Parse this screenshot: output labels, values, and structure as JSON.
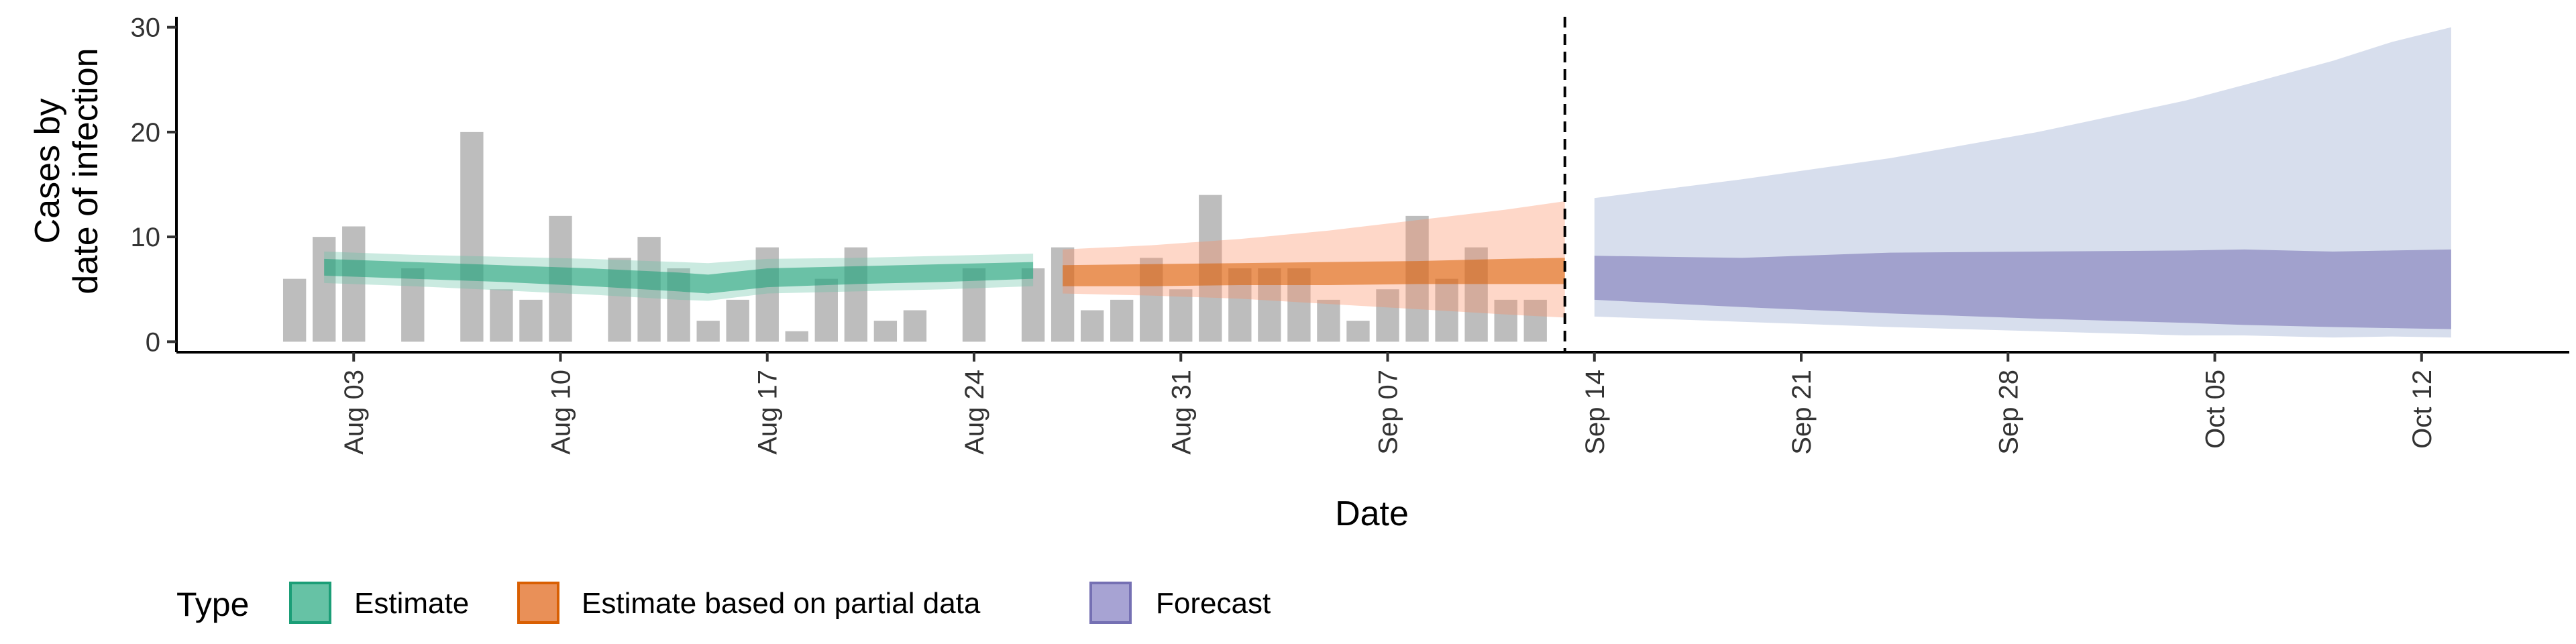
{
  "chart_data": {
    "type": "area",
    "xlabel": "Date",
    "ylabel": [
      "Cases by",
      "date of infection"
    ],
    "xlim": [
      "2020-07-28",
      "2020-10-17"
    ],
    "ylim": [
      -1,
      31
    ],
    "y_ticks": [
      0,
      10,
      20,
      30
    ],
    "x_ticks": [
      {
        "date": "2020-08-03",
        "label": "Aug 03"
      },
      {
        "date": "2020-08-10",
        "label": "Aug 10"
      },
      {
        "date": "2020-08-17",
        "label": "Aug 17"
      },
      {
        "date": "2020-08-24",
        "label": "Aug 24"
      },
      {
        "date": "2020-08-31",
        "label": "Aug 31"
      },
      {
        "date": "2020-09-07",
        "label": "Sep 07"
      },
      {
        "date": "2020-09-14",
        "label": "Sep 14"
      },
      {
        "date": "2020-09-21",
        "label": "Sep 21"
      },
      {
        "date": "2020-09-28",
        "label": "Sep 28"
      },
      {
        "date": "2020-10-05",
        "label": "Oct 05"
      },
      {
        "date": "2020-10-12",
        "label": "Oct 12"
      }
    ],
    "grid": false,
    "vline": {
      "date": "2020-09-13",
      "style": "dashed"
    },
    "bars": {
      "color": "#bdbdbd",
      "points": [
        [
          "2020-08-01",
          6
        ],
        [
          "2020-08-02",
          10
        ],
        [
          "2020-08-03",
          11
        ],
        [
          "2020-08-05",
          7
        ],
        [
          "2020-08-07",
          20
        ],
        [
          "2020-08-08",
          5
        ],
        [
          "2020-08-09",
          4
        ],
        [
          "2020-08-10",
          12
        ],
        [
          "2020-08-12",
          8
        ],
        [
          "2020-08-13",
          10
        ],
        [
          "2020-08-14",
          7
        ],
        [
          "2020-08-15",
          2
        ],
        [
          "2020-08-16",
          4
        ],
        [
          "2020-08-17",
          9
        ],
        [
          "2020-08-18",
          1
        ],
        [
          "2020-08-19",
          6
        ],
        [
          "2020-08-20",
          9
        ],
        [
          "2020-08-21",
          2
        ],
        [
          "2020-08-22",
          3
        ],
        [
          "2020-08-24",
          7
        ],
        [
          "2020-08-26",
          7
        ],
        [
          "2020-08-27",
          9
        ],
        [
          "2020-08-28",
          3
        ],
        [
          "2020-08-29",
          4
        ],
        [
          "2020-08-30",
          8
        ],
        [
          "2020-08-31",
          5
        ],
        [
          "2020-09-01",
          14
        ],
        [
          "2020-09-02",
          7
        ],
        [
          "2020-09-03",
          7
        ],
        [
          "2020-09-04",
          7
        ],
        [
          "2020-09-05",
          4
        ],
        [
          "2020-09-06",
          2
        ],
        [
          "2020-09-07",
          5
        ],
        [
          "2020-09-08",
          12
        ],
        [
          "2020-09-09",
          6
        ],
        [
          "2020-09-10",
          9
        ],
        [
          "2020-09-11",
          4
        ],
        [
          "2020-09-12",
          4
        ]
      ]
    },
    "series": [
      {
        "name": "Estimate",
        "color": "#1b9e77",
        "fill": "#66c2a5",
        "dates": [
          "2020-08-02",
          "2020-08-05",
          "2020-08-08",
          "2020-08-11",
          "2020-08-14",
          "2020-08-15",
          "2020-08-17",
          "2020-08-20",
          "2020-08-23",
          "2020-08-26"
        ],
        "outer_low": [
          5.6,
          5.3,
          4.9,
          4.5,
          4.0,
          3.9,
          4.6,
          4.8,
          5.0,
          5.3
        ],
        "outer_high": [
          8.6,
          8.3,
          8.1,
          7.9,
          7.6,
          7.5,
          7.9,
          8.0,
          8.2,
          8.4
        ],
        "inner_low": [
          6.3,
          6.0,
          5.7,
          5.3,
          4.8,
          4.6,
          5.2,
          5.5,
          5.7,
          6.0
        ],
        "inner_high": [
          7.9,
          7.6,
          7.3,
          7.0,
          6.6,
          6.4,
          7.0,
          7.2,
          7.4,
          7.6
        ]
      },
      {
        "name": "Estimate based on partial data",
        "color": "#d95f02",
        "fill": "#fc8d62",
        "dates": [
          "2020-08-27",
          "2020-08-30",
          "2020-09-02",
          "2020-09-05",
          "2020-09-08",
          "2020-09-11",
          "2020-09-13"
        ],
        "outer_low": [
          4.6,
          4.4,
          4.1,
          3.6,
          3.1,
          2.6,
          2.3
        ],
        "outer_high": [
          8.8,
          9.2,
          9.8,
          10.6,
          11.6,
          12.6,
          13.4
        ],
        "inner_low": [
          5.3,
          5.3,
          5.4,
          5.4,
          5.5,
          5.5,
          5.5
        ],
        "inner_high": [
          7.3,
          7.4,
          7.5,
          7.6,
          7.7,
          7.9,
          8.0
        ]
      },
      {
        "name": "Forecast",
        "color": "#7570b3",
        "fill": "#8da0cb",
        "dates": [
          "2020-09-14",
          "2020-09-19",
          "2020-09-24",
          "2020-09-29",
          "2020-10-04",
          "2020-10-06",
          "2020-10-09",
          "2020-10-11",
          "2020-10-13"
        ],
        "outer_low": [
          2.4,
          1.9,
          1.4,
          1.0,
          0.6,
          0.6,
          0.4,
          0.5,
          0.4
        ],
        "outer_high": [
          13.7,
          15.5,
          17.5,
          20.0,
          23.0,
          24.5,
          26.8,
          28.6,
          30.0
        ],
        "inner_low": [
          4.0,
          3.3,
          2.7,
          2.2,
          1.8,
          1.6,
          1.4,
          1.3,
          1.2
        ],
        "inner_high": [
          8.2,
          8.0,
          8.5,
          8.6,
          8.7,
          8.8,
          8.6,
          8.7,
          8.8
        ]
      }
    ],
    "legend": {
      "title": "Type",
      "position": "bottom-left",
      "entries": [
        "Estimate",
        "Estimate based on partial data",
        "Forecast"
      ]
    }
  }
}
